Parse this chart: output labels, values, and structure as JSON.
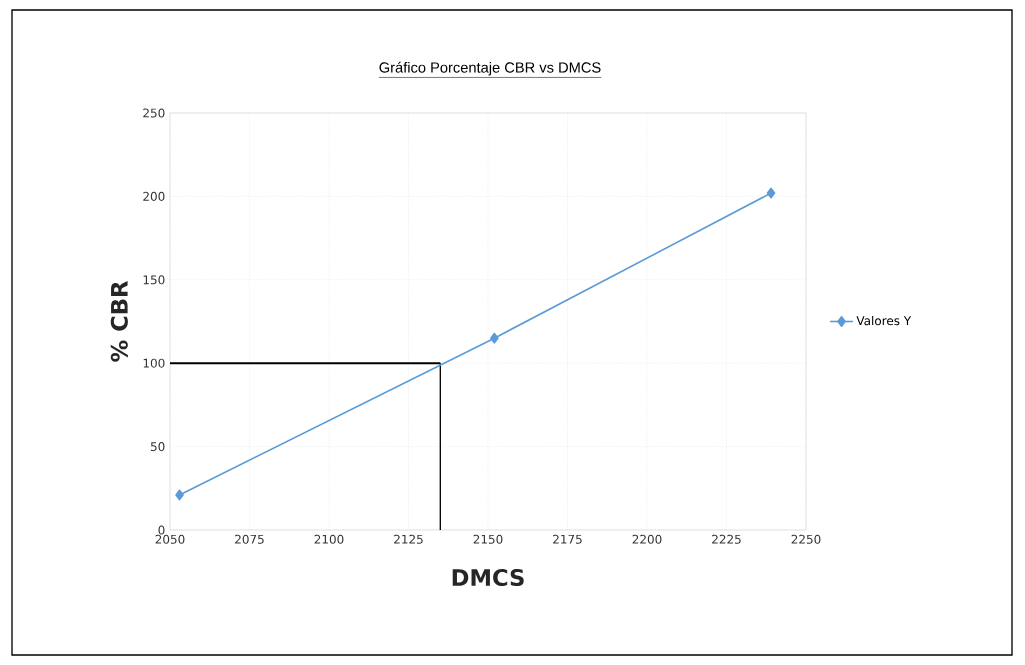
{
  "chart_data": {
    "type": "line",
    "title": "Gráfico Porcentaje CBR vs DMCS",
    "xlabel": "DMCS",
    "ylabel": "% CBR",
    "x": [
      2053,
      2152,
      2239
    ],
    "series": [
      {
        "name": "Valores Y",
        "color": "#5b9bd5",
        "values": [
          21,
          115,
          202
        ]
      }
    ],
    "xlim": [
      2050,
      2250
    ],
    "xticks": [
      2050,
      2075,
      2100,
      2125,
      2150,
      2175,
      2200,
      2225,
      2250
    ],
    "ylim": [
      0,
      250
    ],
    "yticks": [
      0,
      50,
      100,
      150,
      200,
      250
    ],
    "ref_lines": [
      {
        "axis": "y",
        "value": 100,
        "color": "#000000"
      },
      {
        "axis": "x",
        "value": 2135,
        "color": "#000000"
      }
    ],
    "grid": true,
    "legend": "right",
    "marker": "diamond",
    "line_style": "solid"
  }
}
